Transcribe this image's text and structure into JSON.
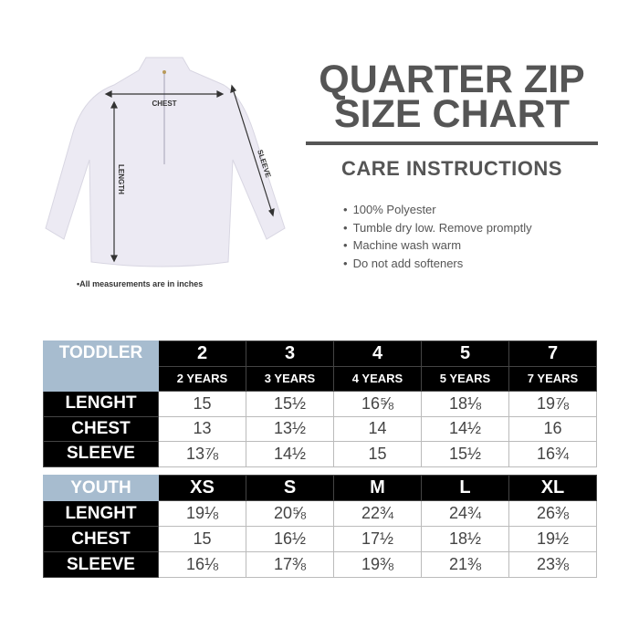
{
  "title": {
    "line1": "QUARTER ZIP",
    "line2": "SIZE CHART"
  },
  "care": {
    "heading": "CARE INSTRUCTIONS",
    "items": [
      "100% Polyester",
      "Tumble dry low. Remove promptly",
      "Machine wash warm",
      "Do not add softeners"
    ]
  },
  "diagram": {
    "chest": "CHEST",
    "length": "LENGTH",
    "sleeve": "SLEEVE",
    "note": "•All measurements are in inches"
  },
  "toddler": {
    "category": "TODDLER",
    "sizes": [
      "2",
      "3",
      "4",
      "5",
      "7"
    ],
    "ages": [
      "2 YEARS",
      "3 YEARS",
      "4 YEARS",
      "5 YEARS",
      "7 YEARS"
    ],
    "rows": [
      {
        "label": "LENGHT",
        "values": [
          "15",
          "15½",
          "16⅝",
          "18⅛",
          "19⅞"
        ]
      },
      {
        "label": "CHEST",
        "values": [
          "13",
          "13½",
          "14",
          "14½",
          "16"
        ]
      },
      {
        "label": "SLEEVE",
        "values": [
          "13⅞",
          "14½",
          "15",
          "15½",
          "16¾"
        ]
      }
    ]
  },
  "youth": {
    "category": "YOUTH",
    "sizes": [
      "XS",
      "S",
      "M",
      "L",
      "XL"
    ],
    "rows": [
      {
        "label": "LENGHT",
        "values": [
          "19⅛",
          "20⅝",
          "22¾",
          "24¾",
          "26⅜"
        ]
      },
      {
        "label": "CHEST",
        "values": [
          "15",
          "16½",
          "17½",
          "18½",
          "19½"
        ]
      },
      {
        "label": "SLEEVE",
        "values": [
          "16⅛",
          "17⅜",
          "19⅜",
          "21⅜",
          "23⅜"
        ]
      }
    ]
  }
}
